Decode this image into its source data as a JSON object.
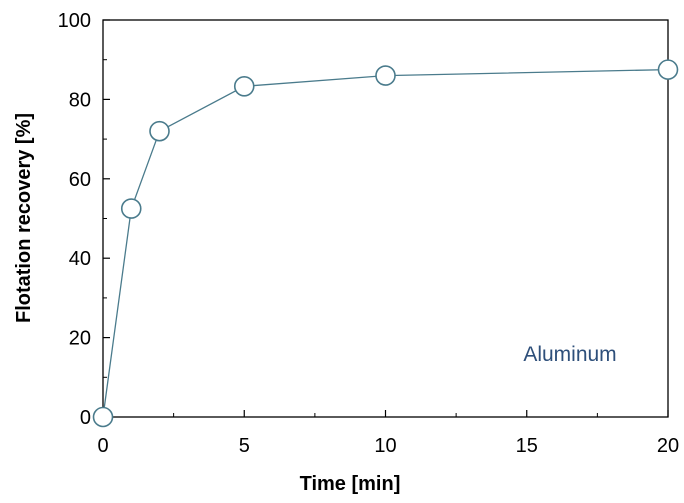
{
  "chart_data": {
    "type": "line",
    "title": "",
    "xlabel": "Time [min]",
    "ylabel": "Flotation recovery [%]",
    "xlim": [
      0,
      20
    ],
    "ylim": [
      0,
      100
    ],
    "x_ticks": [
      0,
      5,
      10,
      15,
      20
    ],
    "x_tick_labels": [
      "0",
      "5",
      "10",
      "15",
      "20"
    ],
    "y_ticks": [
      0,
      20,
      40,
      60,
      80,
      100
    ],
    "y_tick_labels": [
      "0",
      "20",
      "40",
      "60",
      "80",
      "100"
    ],
    "x_minor_ticks": [
      2.5,
      7.5,
      12.5,
      17.5
    ],
    "y_minor_ticks": [
      10,
      30,
      50,
      70,
      90
    ],
    "grid": false,
    "legend": "none",
    "series": [
      {
        "x": [
          0,
          1,
          2,
          5,
          10,
          20
        ],
        "y": [
          0,
          52.5,
          72,
          83.3,
          86,
          87.5
        ],
        "color": "#4a7b8c",
        "marker": "open-circle"
      }
    ],
    "annotations": [
      {
        "text": "Aluminum",
        "color": "#2e4f7a"
      }
    ]
  }
}
